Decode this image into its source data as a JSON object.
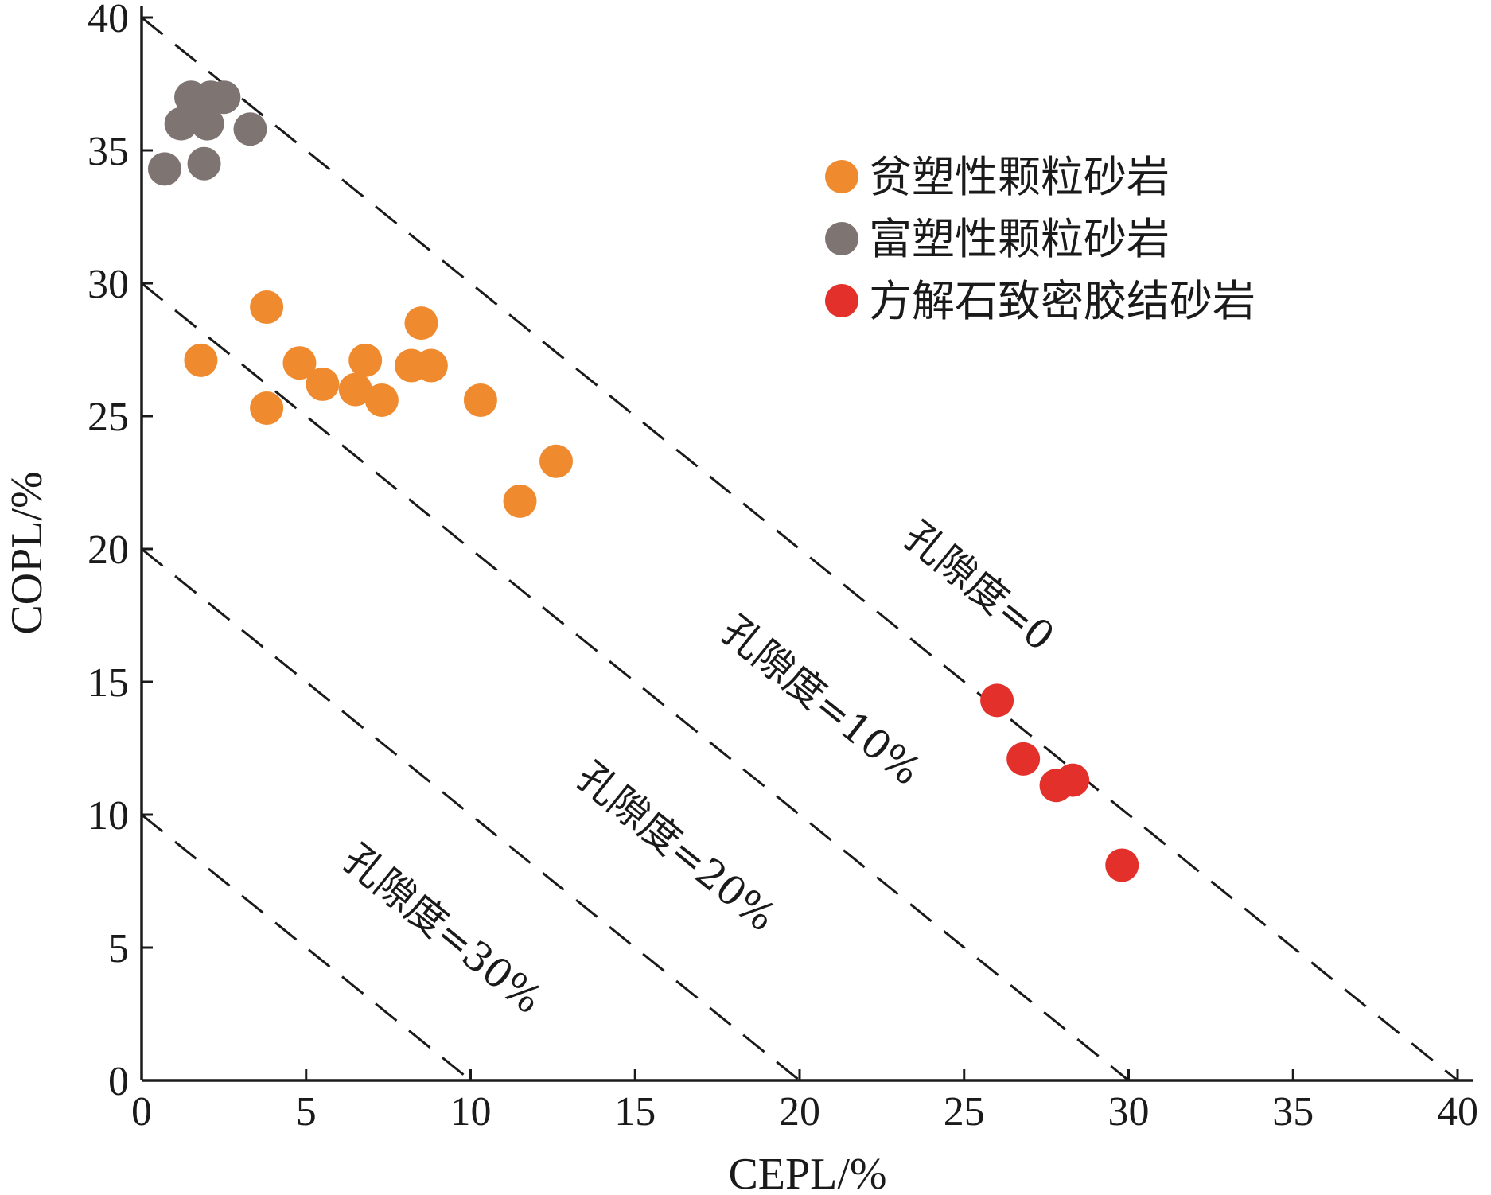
{
  "chart_data": {
    "type": "scatter",
    "xlabel": "CEPL/%",
    "ylabel": "COPL/%",
    "xlim": [
      0,
      40
    ],
    "ylim": [
      0,
      40
    ],
    "xticks": [
      "0",
      "5",
      "10",
      "15",
      "20",
      "25",
      "30",
      "35",
      "40"
    ],
    "yticks": [
      "0",
      "5",
      "10",
      "15",
      "20",
      "25",
      "30",
      "35",
      "40"
    ],
    "grid": false,
    "legend_position": "top-right",
    "series": [
      {
        "name": "贫塑性颗粒砂岩",
        "color": "#F08A2E",
        "points": [
          {
            "x": 1.8,
            "y": 27.1
          },
          {
            "x": 3.8,
            "y": 29.1
          },
          {
            "x": 3.8,
            "y": 25.3
          },
          {
            "x": 4.8,
            "y": 27.0
          },
          {
            "x": 5.5,
            "y": 26.2
          },
          {
            "x": 6.5,
            "y": 26.0
          },
          {
            "x": 6.8,
            "y": 27.1
          },
          {
            "x": 7.3,
            "y": 25.6
          },
          {
            "x": 8.2,
            "y": 26.9
          },
          {
            "x": 8.5,
            "y": 28.5
          },
          {
            "x": 8.8,
            "y": 26.9
          },
          {
            "x": 10.3,
            "y": 25.6
          },
          {
            "x": 11.5,
            "y": 21.8
          },
          {
            "x": 12.6,
            "y": 23.3
          }
        ]
      },
      {
        "name": "富塑性颗粒砂岩",
        "color": "#7E7573",
        "points": [
          {
            "x": 0.7,
            "y": 34.3
          },
          {
            "x": 1.2,
            "y": 36.0
          },
          {
            "x": 1.5,
            "y": 37.0
          },
          {
            "x": 1.8,
            "y": 36.6
          },
          {
            "x": 2.0,
            "y": 36.0
          },
          {
            "x": 2.1,
            "y": 37.0
          },
          {
            "x": 1.9,
            "y": 34.5
          },
          {
            "x": 2.5,
            "y": 37.0
          },
          {
            "x": 3.3,
            "y": 35.8
          }
        ]
      },
      {
        "name": "方解石致密胶结砂岩",
        "color": "#E3302B",
        "points": [
          {
            "x": 26.0,
            "y": 14.3
          },
          {
            "x": 26.8,
            "y": 12.1
          },
          {
            "x": 27.8,
            "y": 11.1
          },
          {
            "x": 28.3,
            "y": 11.3
          },
          {
            "x": 29.8,
            "y": 8.1
          }
        ]
      }
    ],
    "reference_lines": [
      {
        "label": "孔隙度=0",
        "intercept": 40
      },
      {
        "label": "孔隙度=10%",
        "intercept": 30
      },
      {
        "label": "孔隙度=20%",
        "intercept": 20
      },
      {
        "label": "孔隙度=30%",
        "intercept": 10
      }
    ]
  }
}
